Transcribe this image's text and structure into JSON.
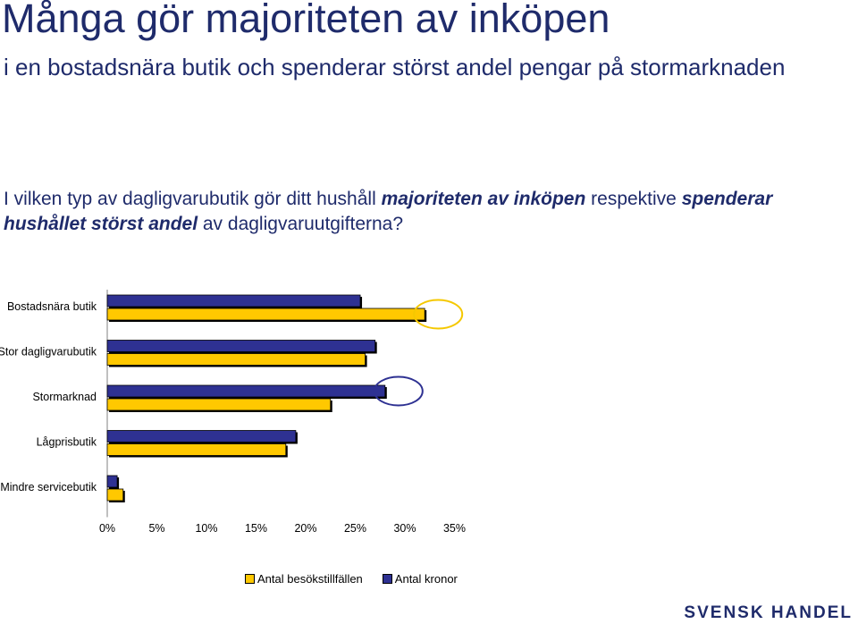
{
  "header": {
    "title": "Många gör majoriteten av inköpen",
    "subtitle": "i en bostadsnära butik och spenderar störst andel pengar på stormarknaden"
  },
  "question": {
    "part1": "I vilken typ av dagligvarubutik gör ditt hushåll ",
    "em1": "majoriteten av inköpen",
    "part2": " respektive ",
    "em2": "spenderar hushållet störst andel",
    "part3": " av dagligvaruutgifterna?"
  },
  "logo": "SVENSK HANDEL",
  "colors": {
    "visits": "#ffc800",
    "kronor": "#2e3192",
    "circle_yellow": "#f5c800",
    "circle_blue": "#2e3192"
  },
  "chart_data": {
    "type": "bar",
    "orientation": "horizontal",
    "categories": [
      "Bostadsnära butik",
      "Stor dagligvarubutik",
      "Stormarknad",
      "Lågprisbutik",
      "Mindre servicebutik"
    ],
    "series": [
      {
        "name": "Antal kronor",
        "values": [
          25.5,
          27,
          28,
          19,
          1
        ]
      },
      {
        "name": "Antal besökstillfällen",
        "values": [
          32,
          26,
          22.5,
          18,
          1.6
        ]
      }
    ],
    "xlim": [
      0,
      35
    ],
    "xticks": [
      "0%",
      "5%",
      "10%",
      "15%",
      "20%",
      "25%",
      "30%",
      "35%"
    ],
    "legend": [
      "Antal besökstillfällen",
      "Antal kronor"
    ],
    "legend_position": "bottom",
    "grid": false,
    "highlights": [
      {
        "category": "Bostadsnära butik",
        "series": "Antal besökstillfällen"
      },
      {
        "category": "Stormarknad",
        "series": "Antal kronor"
      }
    ]
  }
}
